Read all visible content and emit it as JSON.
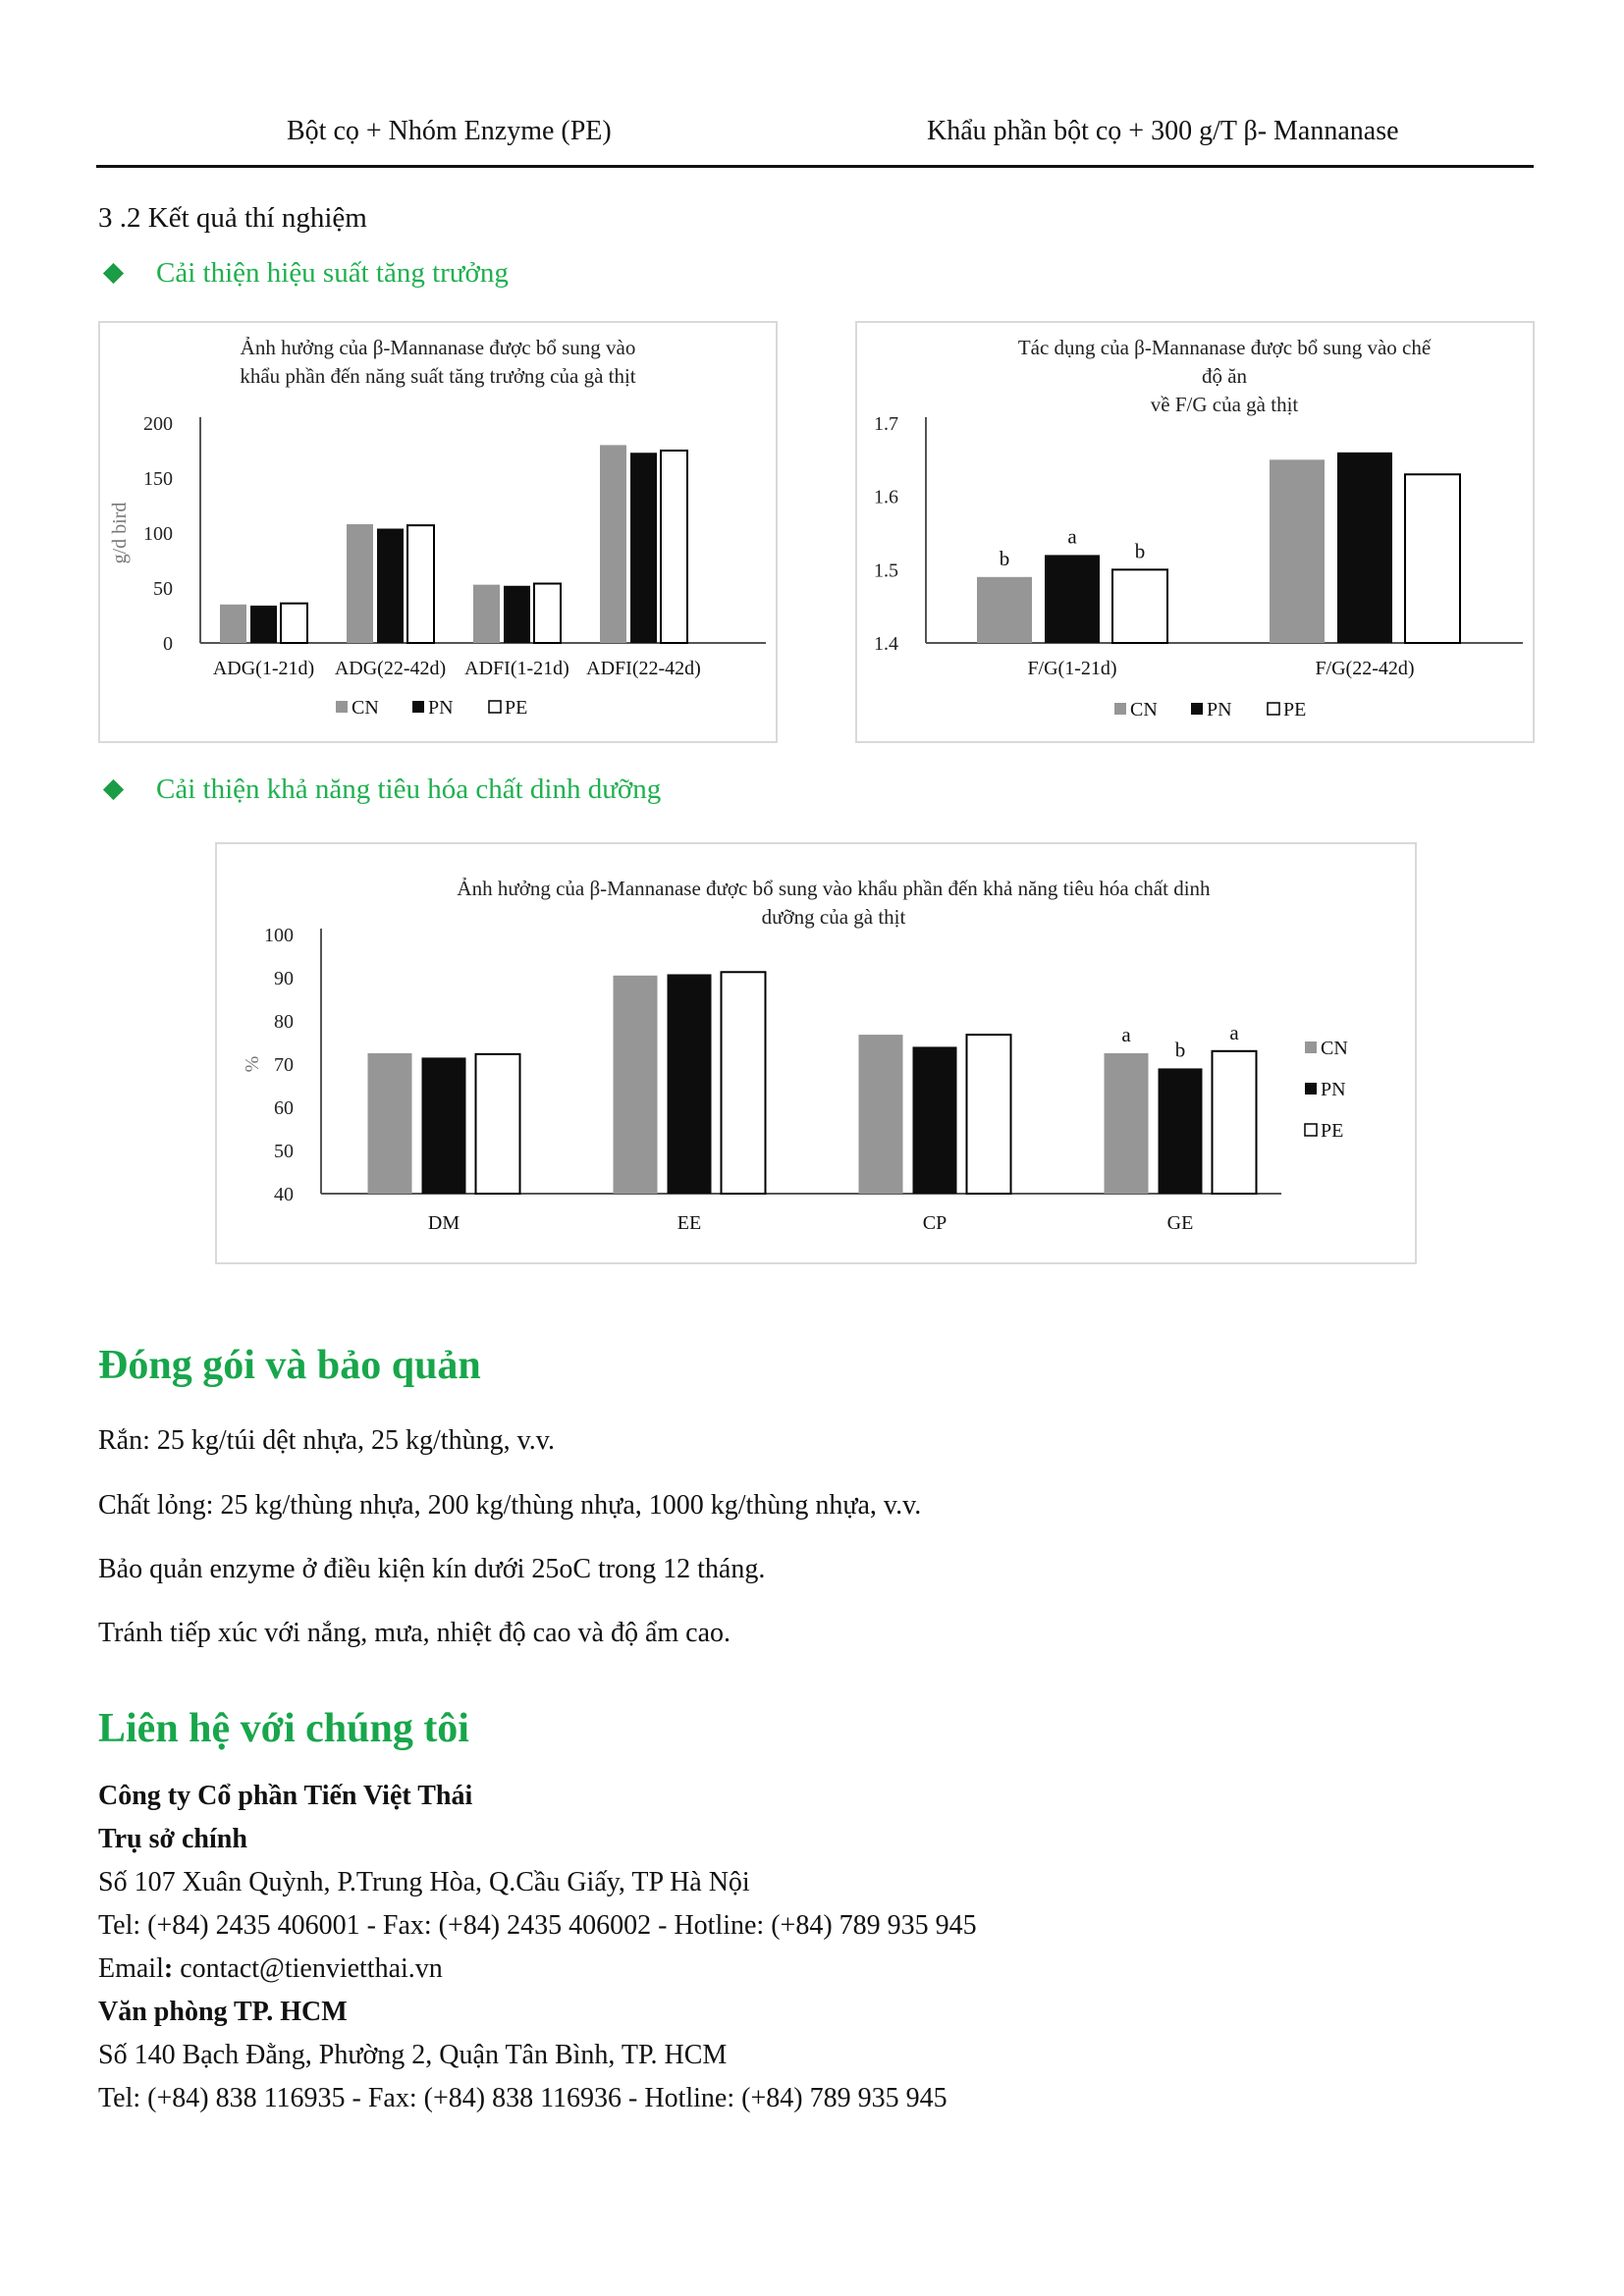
{
  "table_row": {
    "left": "Bột cọ + Nhóm Enzyme (PE)",
    "right": "Khẩu phần bột cọ + 300 g/T β- Mannanase"
  },
  "results_heading": "3 .2 Kết quả thí nghiệm",
  "bullets": {
    "growth": "Cải thiện hiệu suất tăng trưởng",
    "digestion": "Cải thiện khả năng tiêu hóa chất dinh dưỡng"
  },
  "colors": {
    "CN": "#969696",
    "PN": "#0d0d0d",
    "PE": "#ffffff",
    "accent_green": "#18a64b"
  },
  "chart_data": [
    {
      "type": "bar",
      "title": [
        "Ảnh hưởng của β-Mannanase được bổ sung vào",
        "khẩu phần đến năng suất tăng trưởng của gà thịt"
      ],
      "ylabel": "g/d bird",
      "ylim": [
        0,
        200
      ],
      "yticks": [
        "0",
        "50",
        "100",
        "150",
        "200"
      ],
      "categories": [
        "ADG(1-21d)",
        "ADG(22-42d)",
        "ADFI(1-21d)",
        "ADFI(22-42d)"
      ],
      "series": [
        {
          "name": "CN",
          "values": [
            35,
            108,
            53,
            180
          ]
        },
        {
          "name": "PN",
          "values": [
            34,
            104,
            52,
            173
          ]
        },
        {
          "name": "PE",
          "values": [
            36,
            107,
            54,
            175
          ]
        }
      ],
      "legend": "bottom"
    },
    {
      "type": "bar",
      "title": [
        "Tác dụng của β-Mannanase được bổ sung vào chế",
        "độ ăn",
        "về F/G của gà thịt"
      ],
      "ylim": [
        1.4,
        1.7
      ],
      "yticks": [
        "1.4",
        "1.5",
        "1.6",
        "1.7"
      ],
      "categories": [
        "F/G(1-21d)",
        "F/G(22-42d)"
      ],
      "series": [
        {
          "name": "CN",
          "values": [
            1.49,
            1.65
          ],
          "labels": [
            "b",
            ""
          ]
        },
        {
          "name": "PN",
          "values": [
            1.52,
            1.66
          ],
          "labels": [
            "a",
            ""
          ]
        },
        {
          "name": "PE",
          "values": [
            1.5,
            1.63
          ],
          "labels": [
            "b",
            ""
          ]
        }
      ],
      "legend": "bottom"
    },
    {
      "type": "bar",
      "title": [
        "Ảnh hưởng của β-Mannanase được bổ sung vào khẩu phần đến khả năng tiêu hóa chất dinh",
        "dưỡng của gà thịt"
      ],
      "ylabel": "%",
      "ylim": [
        40,
        100
      ],
      "yticks": [
        "40",
        "50",
        "60",
        "70",
        "80",
        "90",
        "100"
      ],
      "categories": [
        "DM",
        "EE",
        "CP",
        "GE"
      ],
      "series": [
        {
          "name": "CN",
          "values": [
            72.5,
            90.5,
            76.8,
            72.5
          ],
          "labels": [
            "",
            "",
            "",
            "a"
          ]
        },
        {
          "name": "PN",
          "values": [
            71.5,
            90.8,
            74,
            69
          ],
          "labels": [
            "",
            "",
            "",
            "b"
          ]
        },
        {
          "name": "PE",
          "values": [
            72.3,
            91.3,
            76.8,
            73
          ],
          "labels": [
            "",
            "",
            "",
            "a"
          ]
        }
      ],
      "legend": "right"
    }
  ],
  "packaging": {
    "heading": "Đóng gói và bảo quản",
    "lines": [
      "Rắn: 25 kg/túi dệt nhựa, 25 kg/thùng, v.v.",
      "Chất lỏng: 25 kg/thùng nhựa, 200 kg/thùng nhựa, 1000 kg/thùng nhựa, v.v.",
      "Bảo quản enzyme ở điều kiện kín dưới 25oC trong 12 tháng.",
      "Tránh tiếp xúc với nắng, mưa, nhiệt độ cao và độ ẩm cao."
    ]
  },
  "contact": {
    "heading": "Liên hệ với chúng tôi",
    "company": "Công ty Cổ phần Tiến Việt Thái",
    "hq_label": "Trụ sở chính",
    "hq_address": "Số 107 Xuân Quỳnh, P.Trung Hòa, Q.Cầu Giấy, TP Hà Nội",
    "hq_phone": "Tel: (+84) 2435 406001 - Fax: (+84) 2435 406002 - Hotline: (+84) 789 935 945",
    "email_label": "Email",
    "email_colon": ":",
    "email_value": " contact@tienvietthai.vn",
    "hcm_label": "Văn phòng TP. HCM",
    "hcm_address": "Số 140 Bạch Đằng, Phường 2, Quận Tân Bình, TP. HCM",
    "hcm_phone": "Tel: (+84) 838 116935 - Fax: (+84) 838 116936 - Hotline: (+84) 789 935 945"
  }
}
